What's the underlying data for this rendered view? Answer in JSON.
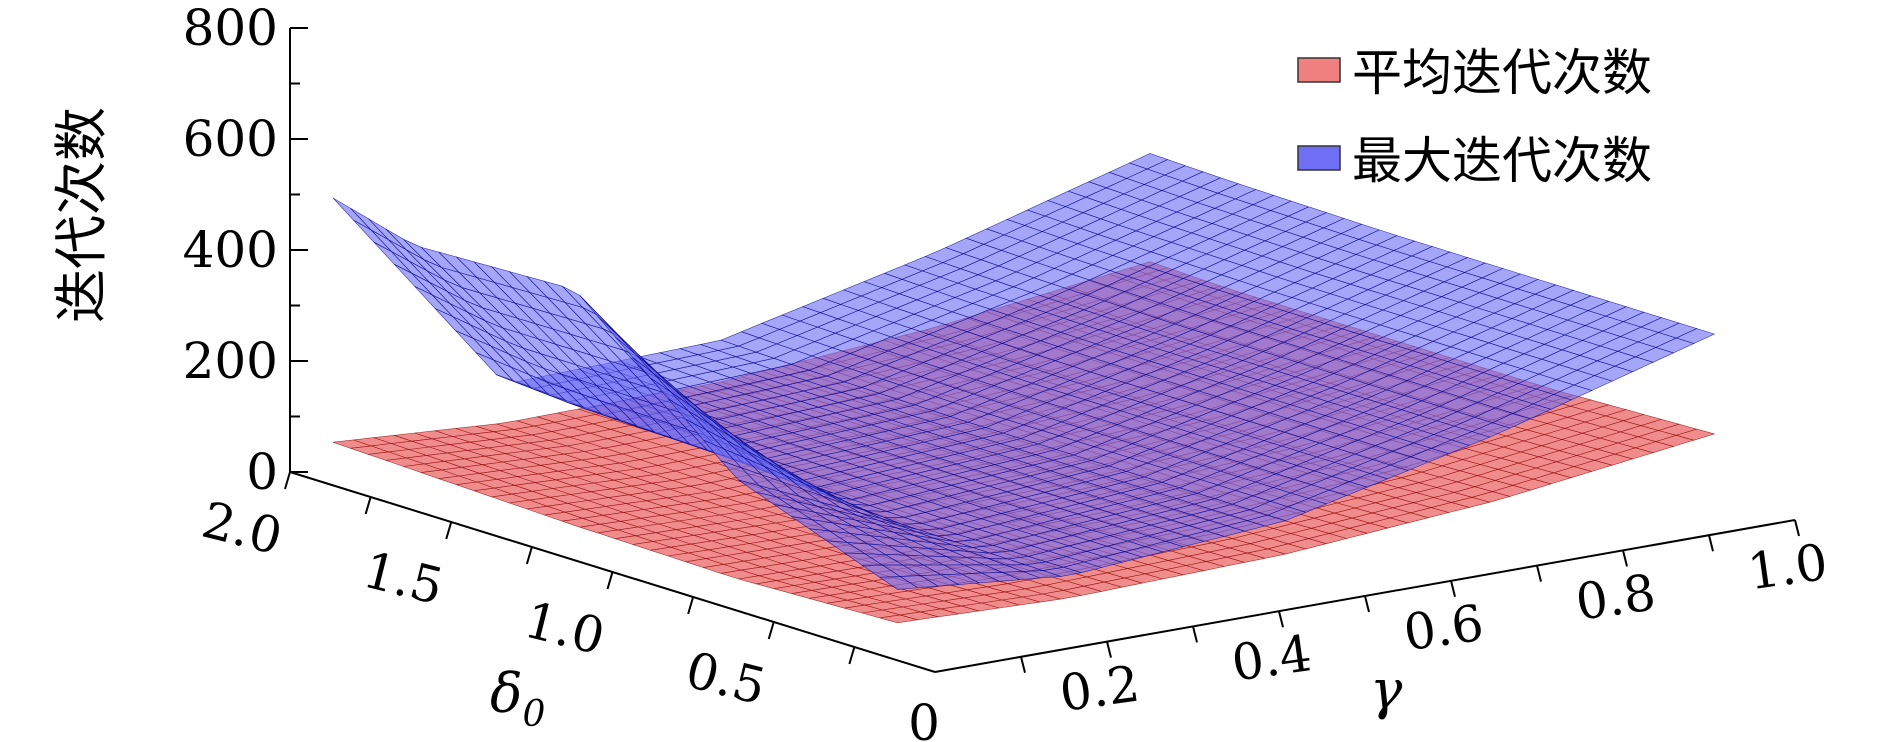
{
  "chart_data": {
    "type": "surface3d",
    "title": "",
    "xlabel": "γ",
    "ylabel": "δ",
    "ylabel_sub": "0",
    "zlabel": "迭代次数",
    "xlim": [
      0,
      1.0
    ],
    "ylim": [
      0,
      2.0
    ],
    "zlim": [
      0,
      800
    ],
    "x_ticks": [
      "0",
      "0.2",
      "0.4",
      "0.6",
      "0.8",
      "1.0"
    ],
    "y_ticks": [
      "0.5",
      "1.0",
      "1.5",
      "2.0"
    ],
    "z_ticks": [
      "0",
      "200",
      "400",
      "600",
      "800"
    ],
    "legend_position": "top-right",
    "series": [
      {
        "name": "平均迭代次数",
        "color": "#f08080",
        "edge_color": "#8b0000",
        "x": [
          0.05,
          0.25,
          0.5,
          0.75,
          1.0
        ],
        "y": [
          0.25,
          0.75,
          1.25,
          1.75,
          2.0
        ],
        "z": [
          [
            30,
            20,
            30,
            60,
            110
          ],
          [
            20,
            15,
            25,
            50,
            100
          ],
          [
            25,
            15,
            25,
            50,
            100
          ],
          [
            35,
            20,
            25,
            50,
            100
          ],
          [
            40,
            20,
            25,
            55,
            105
          ]
        ]
      },
      {
        "name": "最大迭代次数",
        "color": "#6f6ff5",
        "edge_color": "#00008b",
        "x": [
          0.05,
          0.25,
          0.5,
          0.75,
          1.0
        ],
        "y": [
          0.25,
          0.75,
          1.25,
          1.75,
          2.0
        ],
        "z": [
          [
            90,
            60,
            90,
            180,
            290
          ],
          [
            200,
            60,
            90,
            180,
            290
          ],
          [
            450,
            70,
            90,
            180,
            290
          ],
          [
            440,
            80,
            95,
            185,
            295
          ],
          [
            480,
            90,
            100,
            190,
            300
          ]
        ]
      }
    ]
  }
}
